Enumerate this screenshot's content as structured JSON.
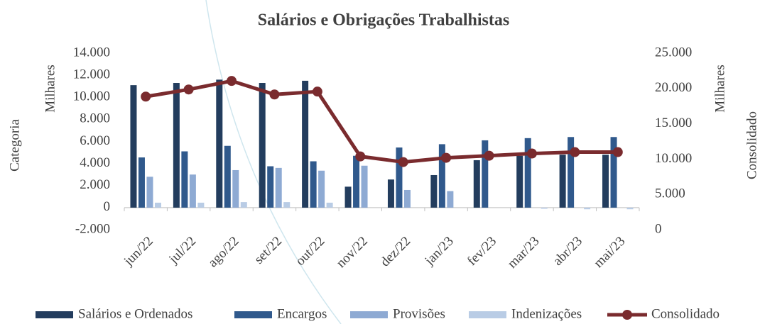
{
  "chart_data": {
    "type": "bar_line",
    "title": "Salários e Obrigações Trabalhistas",
    "y_axis_label": "Milhares",
    "y2_axis_label": "Milhares",
    "left_axis_title": "Categoria",
    "right_axis_title": "Consolidado",
    "categories": [
      "jun/22",
      "jul/22",
      "ago/22",
      "set/22",
      "out/22",
      "nov/22",
      "dez/22",
      "jan/23",
      "fev/23",
      "mar/23",
      "abr/23",
      "mai/23"
    ],
    "series": [
      {
        "name": "Salários e Ordenados",
        "color": "#233d5e",
        "type": "bar",
        "values": [
          11100,
          11300,
          11600,
          11300,
          11500,
          1900,
          2550,
          2950,
          4300,
          4700,
          4800,
          4800
        ]
      },
      {
        "name": "Encargos",
        "color": "#30598c",
        "type": "bar",
        "values": [
          4550,
          5100,
          5600,
          3750,
          4200,
          4700,
          5450,
          5750,
          6100,
          6300,
          6400,
          6400
        ]
      },
      {
        "name": "Provisões",
        "color": "#8eaad3",
        "type": "bar",
        "values": [
          2800,
          3000,
          3400,
          3600,
          3350,
          3800,
          1600,
          1500,
          0,
          0,
          0,
          0
        ]
      },
      {
        "name": "Indenizações",
        "color": "#b9cce5",
        "type": "bar",
        "values": [
          450,
          450,
          500,
          500,
          450,
          0,
          0,
          0,
          0,
          -100,
          -150,
          -150
        ]
      },
      {
        "name": "Consolidado",
        "color": "#7a2b2e",
        "type": "line",
        "axis": "y2",
        "values": [
          18850,
          19860,
          21070,
          19150,
          19560,
          10380,
          9580,
          10180,
          10480,
          10790,
          10990,
          10990
        ]
      }
    ],
    "ylim": [
      -2000,
      14000
    ],
    "yticks": [
      {
        "value": -2000,
        "label": "-2.000"
      },
      0,
      {
        "value": 2000,
        "label": "2.000"
      },
      {
        "value": 4000,
        "label": "4.000"
      },
      {
        "value": 6000,
        "label": "6.000"
      },
      {
        "value": 8000,
        "label": "8.000"
      },
      {
        "value": 10000,
        "label": "10.000"
      },
      {
        "value": 12000,
        "label": "12.000"
      },
      {
        "value": 14000,
        "label": "14.000"
      }
    ],
    "y2lim": [
      0,
      25000
    ],
    "y2ticks": [
      0,
      {
        "value": 5000,
        "label": "5.000"
      },
      {
        "value": 10000,
        "label": "10.000"
      },
      {
        "value": 15000,
        "label": "15.000"
      },
      {
        "value": 20000,
        "label": "20.000"
      },
      {
        "value": 25000,
        "label": "25.000"
      }
    ],
    "grid": false,
    "legend": "bottom"
  }
}
